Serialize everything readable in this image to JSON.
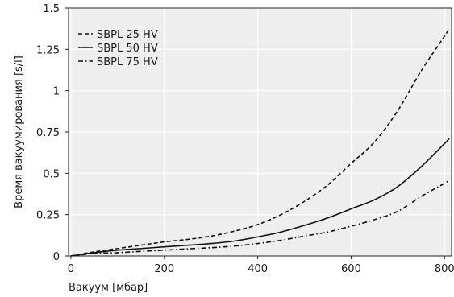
{
  "chart_data": {
    "type": "line",
    "title": "",
    "xlabel": "Вакуум [мбар]",
    "ylabel": "Время вакуумирования [s/l]",
    "xlim": [
      -5,
      815
    ],
    "ylim": [
      0,
      1.5
    ],
    "x_ticks": [
      0,
      200,
      400,
      600,
      800
    ],
    "y_ticks": [
      0,
      0.25,
      0.5,
      0.75,
      1,
      1.25,
      1.5
    ],
    "y_tick_labels": [
      "0",
      "0.25",
      "0.5",
      "0.75",
      "1",
      "1.25",
      "1.5"
    ],
    "grid": true,
    "legend_position": "top-left",
    "colors": {
      "plot_background": "#eeeeee",
      "grid": "#ffffff",
      "line": "#111111",
      "axis": "#222222"
    },
    "series": [
      {
        "name": "SBPL 25 HV",
        "style": "dashed",
        "x": [
          0,
          50,
          100,
          150,
          200,
          250,
          300,
          350,
          400,
          450,
          500,
          550,
          600,
          650,
          700,
          750,
          800,
          810
        ],
        "y": [
          0,
          0.025,
          0.045,
          0.065,
          0.085,
          0.1,
          0.12,
          0.15,
          0.19,
          0.25,
          0.33,
          0.43,
          0.56,
          0.69,
          0.88,
          1.12,
          1.33,
          1.38
        ]
      },
      {
        "name": "SBPL 50 HV",
        "style": "solid",
        "x": [
          0,
          50,
          100,
          150,
          200,
          250,
          300,
          350,
          400,
          450,
          500,
          550,
          600,
          650,
          700,
          750,
          800,
          810
        ],
        "y": [
          0,
          0.02,
          0.035,
          0.045,
          0.055,
          0.065,
          0.075,
          0.09,
          0.115,
          0.145,
          0.185,
          0.23,
          0.285,
          0.34,
          0.42,
          0.54,
          0.68,
          0.71
        ]
      },
      {
        "name": "SBPL 75 HV",
        "style": "dash-dot",
        "x": [
          0,
          50,
          100,
          150,
          200,
          250,
          300,
          350,
          400,
          450,
          500,
          550,
          600,
          650,
          700,
          750,
          800,
          810
        ],
        "y": [
          0,
          0.015,
          0.02,
          0.028,
          0.035,
          0.043,
          0.05,
          0.06,
          0.075,
          0.095,
          0.12,
          0.145,
          0.18,
          0.22,
          0.27,
          0.36,
          0.44,
          0.46
        ]
      }
    ]
  }
}
